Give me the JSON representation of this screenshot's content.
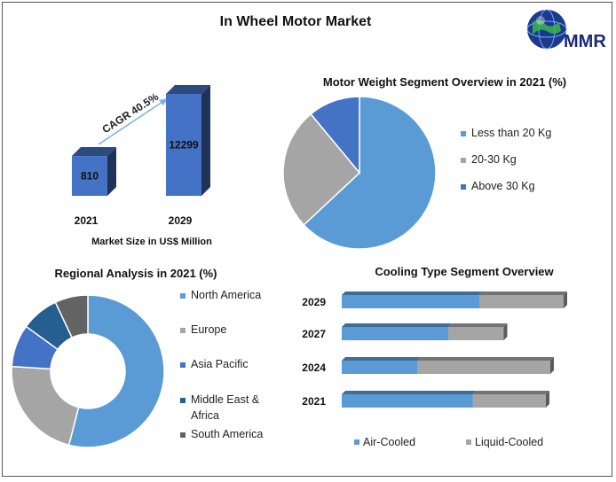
{
  "title": "In Wheel Motor Market",
  "logo": {
    "text": "MMR",
    "icon": "globe-icon"
  },
  "colors": {
    "blue": "#5b9bd5",
    "gray": "#a5a5a5",
    "dark_blue": "#4472c4",
    "navy": "#255e91",
    "dark_gray": "#636363",
    "bar_blue": "#4472c4"
  },
  "chart_data": [
    {
      "type": "bar",
      "categories": [
        "2021",
        "2029"
      ],
      "values": [
        810,
        12299
      ],
      "value_labels": [
        "810",
        "12299"
      ],
      "annotation": "CAGR 40.5%",
      "xlabel": "Market Size in US$ Million"
    },
    {
      "type": "pie",
      "title": "Motor Weight Segment Overview in 2021 (%)",
      "labels": [
        "Less than 20 Kg",
        "20-30 Kg",
        "Above 30 Kg"
      ],
      "values": [
        63,
        26,
        11
      ],
      "colors": [
        "#5b9bd5",
        "#a5a5a5",
        "#4472c4"
      ],
      "legend": "right"
    },
    {
      "type": "pie",
      "donut": true,
      "title": "Regional Analysis in 2021 (%)",
      "labels": [
        "North America",
        "Europe",
        "Asia Pacific",
        "Middle East & Africa",
        "South America"
      ],
      "legend_lines": [
        [
          "North America"
        ],
        [
          "Europe"
        ],
        [
          "Asia Pacific"
        ],
        [
          "Middle East &",
          "Africa"
        ],
        [
          "South America"
        ]
      ],
      "values": [
        54,
        22,
        9,
        8,
        7
      ],
      "colors": [
        "#5b9bd5",
        "#a5a5a5",
        "#4472c4",
        "#255e91",
        "#636363"
      ],
      "legend": "right"
    },
    {
      "type": "bar",
      "orientation": "horizontal",
      "stacked": true,
      "title": "Cooling Type Segment Overview",
      "categories": [
        "2029",
        "2027",
        "2024",
        "2021"
      ],
      "series": [
        {
          "name": "Air-Cooled",
          "values": [
            62,
            48,
            34,
            59
          ],
          "color": "#5b9bd5"
        },
        {
          "name": "Liquid-Cooled",
          "values": [
            38,
            25,
            60,
            33
          ],
          "color": "#a5a5a5"
        }
      ],
      "legend": "bottom"
    }
  ]
}
